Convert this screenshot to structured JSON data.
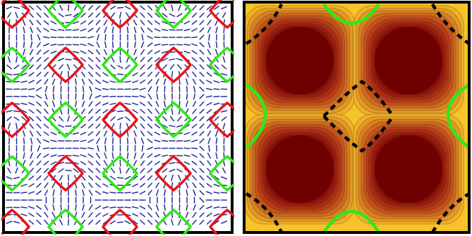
{
  "figure": {
    "left_panel": {
      "description_id": "director-field-with-defects",
      "colors": {
        "frame": "#000000",
        "background": "#ffffff",
        "director": "#26309a",
        "defect_negative": "#e8141a",
        "defect_positive": "#2ee818"
      }
    },
    "right_panel": {
      "description_id": "order-parameter-contours",
      "colors": {
        "frame": "#000000",
        "background": "#f7c22a",
        "contour_dark": "#6e0000",
        "contour_mid": "#c22818",
        "contour_light": "#e8a225",
        "boundary_green": "#2ee818",
        "boundary_dashed": "#000000"
      }
    }
  }
}
